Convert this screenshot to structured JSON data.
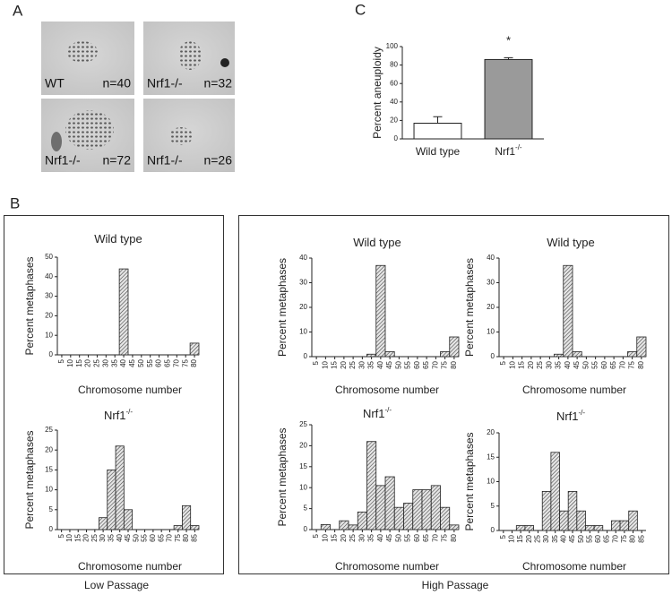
{
  "panel_labels": {
    "a": "A",
    "b": "B",
    "c": "C"
  },
  "panel_a": {
    "images": [
      {
        "label": "WT",
        "count": "n=40"
      },
      {
        "label": "Nrf1-/-",
        "count": "n=32"
      },
      {
        "label": "Nrf1-/-",
        "count": "n=72"
      },
      {
        "label": "Nrf1-/-",
        "count": "n=26"
      }
    ]
  },
  "passage_labels": {
    "low": "Low Passage",
    "high": "High Passage"
  },
  "chart_data": [
    {
      "type": "bar",
      "y_label": "Percent aneuploidy",
      "categories": [
        "Wild type",
        "Nrf1"
      ],
      "category_superscripts": [
        null,
        "-/-"
      ],
      "values": [
        17,
        86
      ],
      "errors": [
        7,
        2
      ],
      "colors": [
        "#ffffff",
        "#9a9a9a"
      ],
      "annotation": "*",
      "ylim": [
        0,
        100
      ],
      "yticks": [
        0,
        20,
        40,
        60,
        80,
        100
      ]
    },
    {
      "type": "bar",
      "title": "Wild type",
      "x_label": "Chromosome number",
      "y_label": "Percent metaphases",
      "categories": [
        "5",
        "10",
        "15",
        "20",
        "25",
        "30",
        "35",
        "40",
        "45",
        "50",
        "55",
        "60",
        "65",
        "70",
        "75",
        "80"
      ],
      "values": [
        0,
        0,
        0,
        0,
        0,
        0,
        0,
        44,
        0,
        0,
        0,
        0,
        0,
        0,
        0,
        6
      ],
      "fill": "hatched",
      "ylim": [
        0,
        50
      ],
      "yticks": [
        0,
        10,
        20,
        30,
        40,
        50
      ]
    },
    {
      "type": "bar",
      "title": "Nrf1",
      "title_superscript": "-/-",
      "x_label": "Chromosome number",
      "y_label": "Percent metaphases",
      "categories": [
        "5",
        "10",
        "15",
        "20",
        "25",
        "30",
        "35",
        "40",
        "45",
        "50",
        "55",
        "60",
        "65",
        "70",
        "75",
        "80",
        "85"
      ],
      "values": [
        0,
        0,
        0,
        0,
        0,
        3,
        15,
        21,
        5,
        0,
        0,
        0,
        0,
        0,
        1,
        6,
        1
      ],
      "fill": "hatched",
      "ylim": [
        0,
        25
      ],
      "yticks": [
        0,
        5,
        10,
        15,
        20,
        25
      ]
    },
    {
      "type": "bar",
      "title": "Wild type",
      "x_label": "Chromosome number",
      "y_label": "Percent metaphases",
      "categories": [
        "5",
        "10",
        "15",
        "20",
        "25",
        "30",
        "35",
        "40",
        "45",
        "50",
        "55",
        "60",
        "65",
        "70",
        "75",
        "80"
      ],
      "values": [
        0,
        0,
        0,
        0,
        0,
        0,
        1,
        37,
        2,
        0,
        0,
        0,
        0,
        0,
        2,
        8
      ],
      "fill": "hatched",
      "ylim": [
        0,
        40
      ],
      "yticks": [
        0,
        10,
        20,
        30,
        40
      ]
    },
    {
      "type": "bar",
      "title": "Wild type",
      "x_label": "Chromosome number",
      "y_label": "Percent metaphases",
      "categories": [
        "5",
        "10",
        "15",
        "20",
        "25",
        "30",
        "35",
        "40",
        "45",
        "50",
        "55",
        "60",
        "65",
        "70",
        "75",
        "80"
      ],
      "values": [
        0,
        0,
        0,
        0,
        0,
        0,
        1,
        37,
        2,
        0,
        0,
        0,
        0,
        0,
        2,
        8
      ],
      "fill": "hatched",
      "ylim": [
        0,
        40
      ],
      "yticks": [
        0,
        10,
        20,
        30,
        40
      ]
    },
    {
      "type": "bar",
      "title": "Nrf1",
      "title_superscript": "-/-",
      "x_label": "Chromosome number",
      "y_label": "Percent metaphases",
      "categories": [
        "5",
        "10",
        "15",
        "20",
        "25",
        "30",
        "35",
        "40",
        "45",
        "50",
        "55",
        "60",
        "65",
        "70",
        "75",
        "80"
      ],
      "values": [
        0,
        1.2,
        0,
        2.1,
        1.1,
        4.2,
        21,
        10.5,
        12.6,
        5.3,
        6.3,
        9.5,
        9.5,
        10.5,
        5.3,
        1.1
      ],
      "fill": "hatched",
      "ylim": [
        0,
        25
      ],
      "yticks": [
        0,
        5,
        10,
        15,
        20,
        25
      ]
    },
    {
      "type": "bar",
      "title": "Nrf1",
      "title_superscript": "-/-",
      "x_label": "Chromosome number",
      "y_label": "Percent metaphases",
      "categories": [
        "5",
        "10",
        "15",
        "20",
        "25",
        "30",
        "35",
        "40",
        "45",
        "50",
        "55",
        "60",
        "65",
        "70",
        "75",
        "80",
        "85"
      ],
      "values": [
        0,
        0,
        1,
        1,
        0,
        8,
        16,
        4,
        8,
        4,
        1,
        1,
        0,
        2,
        2,
        4,
        0
      ],
      "fill": "hatched",
      "ylim": [
        0,
        20
      ],
      "yticks": [
        0,
        5,
        10,
        15,
        20
      ]
    }
  ]
}
